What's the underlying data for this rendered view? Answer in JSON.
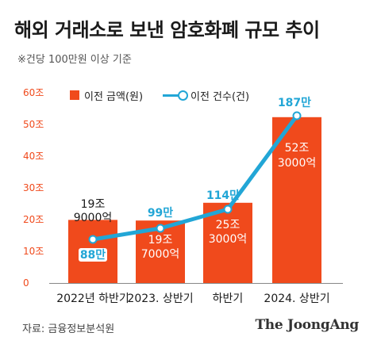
{
  "title": "해외 거래소로 보낸 암호화폐 규모 추이",
  "subtitle": "※건당 100만원 이상 기준",
  "source": "자료: 금융정보분석원",
  "logo_text": "The JoongAng",
  "colors": {
    "bar": "#f04a1c",
    "line": "#22a6d6",
    "axis_text": "#f04a1c",
    "amount_label": "#1a1a1a",
    "amount_label_inside": "#ffffff",
    "count_label": "#22a6d6"
  },
  "legend": {
    "amount": "이전 금액(원)",
    "count": "이전 건수(건)"
  },
  "chart_data": {
    "type": "bar",
    "categories": [
      "2022년 하반기",
      "2023. 상반기",
      "하반기",
      "2024. 상반기"
    ],
    "ylim": [
      0,
      60
    ],
    "yticks": [
      "0",
      "10조",
      "20조",
      "30조",
      "40조",
      "50조",
      "60조"
    ],
    "legend_position": "top-left",
    "grid": false,
    "series": [
      {
        "name": "이전 금액(원)",
        "type": "bar",
        "values": [
          19.9,
          19.7,
          25.3,
          52.3
        ],
        "labels": [
          [
            "19조",
            "9000억"
          ],
          [
            "19조",
            "7000억"
          ],
          [
            "25조",
            "3000억"
          ],
          [
            "52조",
            "3000억"
          ]
        ]
      },
      {
        "name": "이전 건수(건)",
        "type": "line",
        "values": [
          88,
          99,
          114,
          187
        ],
        "labels": [
          "88만",
          "99만",
          "114만",
          "187만"
        ]
      }
    ]
  }
}
